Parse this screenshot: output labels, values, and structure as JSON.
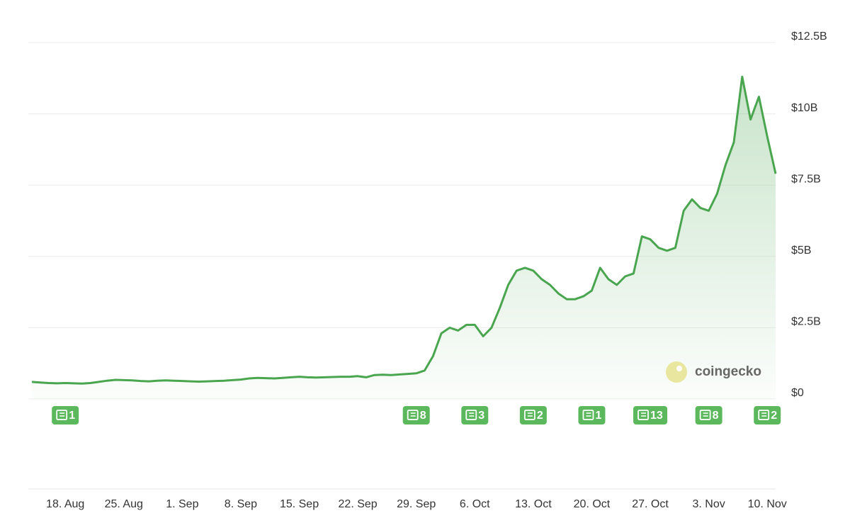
{
  "chart_data": {
    "type": "line",
    "x": [
      "14. Aug",
      "15. Aug",
      "16. Aug",
      "17. Aug",
      "18. Aug",
      "19. Aug",
      "20. Aug",
      "21. Aug",
      "22. Aug",
      "23. Aug",
      "24. Aug",
      "25. Aug",
      "26. Aug",
      "27. Aug",
      "28. Aug",
      "29. Aug",
      "30. Aug",
      "31. Aug",
      "1. Sep",
      "2. Sep",
      "3. Sep",
      "4. Sep",
      "5. Sep",
      "6. Sep",
      "7. Sep",
      "8. Sep",
      "9. Sep",
      "10. Sep",
      "11. Sep",
      "12. Sep",
      "13. Sep",
      "14. Sep",
      "15. Sep",
      "16. Sep",
      "17. Sep",
      "18. Sep",
      "19. Sep",
      "20. Sep",
      "21. Sep",
      "22. Sep",
      "23. Sep",
      "24. Sep",
      "25. Sep",
      "26. Sep",
      "27. Sep",
      "28. Sep",
      "29. Sep",
      "30. Sep",
      "1. Oct",
      "2. Oct",
      "3. Oct",
      "4. Oct",
      "5. Oct",
      "6. Oct",
      "7. Oct",
      "8. Oct",
      "9. Oct",
      "10. Oct",
      "11. Oct",
      "12. Oct",
      "13. Oct",
      "14. Oct",
      "15. Oct",
      "16. Oct",
      "17. Oct",
      "18. Oct",
      "19. Oct",
      "20. Oct",
      "21. Oct",
      "22. Oct",
      "23. Oct",
      "24. Oct",
      "25. Oct",
      "26. Oct",
      "27. Oct",
      "28. Oct",
      "29. Oct",
      "30. Oct",
      "31. Oct",
      "1. Nov",
      "2. Nov",
      "3. Nov",
      "4. Nov",
      "5. Nov",
      "6. Nov",
      "7. Nov",
      "8. Nov",
      "9. Nov",
      "10. Nov",
      "11. Nov"
    ],
    "series": [
      {
        "color": "#4aa54f",
        "values": [
          0.6,
          0.58,
          0.56,
          0.55,
          0.56,
          0.55,
          0.54,
          0.56,
          0.6,
          0.64,
          0.67,
          0.66,
          0.65,
          0.63,
          0.62,
          0.64,
          0.65,
          0.64,
          0.63,
          0.62,
          0.61,
          0.62,
          0.63,
          0.64,
          0.66,
          0.68,
          0.72,
          0.74,
          0.73,
          0.72,
          0.74,
          0.76,
          0.78,
          0.76,
          0.75,
          0.76,
          0.77,
          0.78,
          0.78,
          0.8,
          0.76,
          0.84,
          0.85,
          0.84,
          0.86,
          0.88,
          0.9,
          1.0,
          1.5,
          2.3,
          2.5,
          2.4,
          2.6,
          2.6,
          2.2,
          2.5,
          3.2,
          4.0,
          4.5,
          4.6,
          4.5,
          4.2,
          4.0,
          3.7,
          3.5,
          3.5,
          3.6,
          3.8,
          4.6,
          4.2,
          4.0,
          4.3,
          4.4,
          5.7,
          5.6,
          5.3,
          5.2,
          5.3,
          6.6,
          7.0,
          6.7,
          6.6,
          7.2,
          8.2,
          9.0,
          11.3,
          9.8,
          10.6,
          9.2,
          7.9
        ]
      }
    ],
    "ylim": [
      0,
      12.5
    ],
    "yticks": [
      {
        "value": 0,
        "label": "$0"
      },
      {
        "value": 2.5,
        "label": "$2.5B"
      },
      {
        "value": 5,
        "label": "$5B"
      },
      {
        "value": 7.5,
        "label": "$7.5B"
      },
      {
        "value": 10,
        "label": "$10B"
      },
      {
        "value": 12.5,
        "label": "$12.5B"
      }
    ],
    "xticks": [
      "18. Aug",
      "25. Aug",
      "1. Sep",
      "8. Sep",
      "15. Sep",
      "22. Sep",
      "29. Sep",
      "6. Oct",
      "13. Oct",
      "20. Oct",
      "27. Oct",
      "3. Nov",
      "10. Nov"
    ],
    "grid": true,
    "news": [
      {
        "date": "18. Aug",
        "count": 1
      },
      {
        "date": "29. Sep",
        "count": 8
      },
      {
        "date": "6. Oct",
        "count": 3
      },
      {
        "date": "13. Oct",
        "count": 2
      },
      {
        "date": "20. Oct",
        "count": 1
      },
      {
        "date": "27. Oct",
        "count": 13
      },
      {
        "date": "3. Nov",
        "count": 8
      },
      {
        "date": "10. Nov",
        "count": 2
      }
    ],
    "watermark": "coingecko"
  }
}
